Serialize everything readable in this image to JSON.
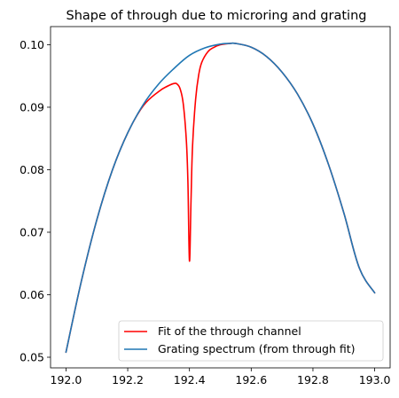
{
  "chart_data": {
    "type": "line",
    "title": "Shape of through due to microring and grating",
    "xlabel": "",
    "ylabel": "",
    "xlim": [
      191.95,
      193.05
    ],
    "ylim": [
      0.0483,
      0.1029
    ],
    "xticks": [
      192.0,
      192.2,
      192.4,
      192.6,
      192.8,
      193.0
    ],
    "xtick_labels": [
      "192.0",
      "192.2",
      "192.4",
      "192.6",
      "192.8",
      "193.0"
    ],
    "yticks": [
      0.05,
      0.06,
      0.07,
      0.08,
      0.09,
      0.1
    ],
    "ytick_labels": [
      "0.05",
      "0.06",
      "0.07",
      "0.08",
      "0.09",
      "0.10"
    ],
    "grid": false,
    "legend_position": "lower-right",
    "series": [
      {
        "name": "Fit of the through channel",
        "color": "#ff0000",
        "x": [
          192.0,
          192.05,
          192.1,
          192.15,
          192.2,
          192.25,
          192.3,
          192.33,
          192.35,
          192.36,
          192.37,
          192.38,
          192.39,
          192.395,
          192.4,
          192.405,
          192.41,
          192.42,
          192.43,
          192.44,
          192.46,
          192.48,
          192.5,
          192.53,
          192.55,
          192.6,
          192.65,
          192.7,
          192.75,
          192.8,
          192.85,
          192.9,
          192.95,
          193.0
        ],
        "y": [
          0.0508,
          0.0622,
          0.072,
          0.0799,
          0.0859,
          0.0902,
          0.0925,
          0.0934,
          0.0938,
          0.0937,
          0.0929,
          0.0905,
          0.0846,
          0.078,
          0.0654,
          0.075,
          0.0838,
          0.0913,
          0.0952,
          0.0972,
          0.0989,
          0.0996,
          0.1,
          0.1002,
          0.1002,
          0.0996,
          0.0981,
          0.0956,
          0.0921,
          0.0873,
          0.0809,
          0.0731,
          0.0643,
          0.0603
        ]
      },
      {
        "name": "Grating spectrum (from through fit)",
        "color": "#1f77b4",
        "x": [
          192.0,
          192.05,
          192.1,
          192.15,
          192.2,
          192.25,
          192.3,
          192.35,
          192.4,
          192.45,
          192.5,
          192.53,
          192.55,
          192.6,
          192.65,
          192.7,
          192.75,
          192.8,
          192.85,
          192.9,
          192.95,
          193.0
        ],
        "y": [
          0.0508,
          0.0622,
          0.072,
          0.0799,
          0.0859,
          0.0904,
          0.0937,
          0.0962,
          0.0983,
          0.0995,
          0.1001,
          0.1002,
          0.1002,
          0.0996,
          0.0981,
          0.0956,
          0.0921,
          0.0873,
          0.0809,
          0.0731,
          0.0643,
          0.0603
        ]
      }
    ]
  }
}
